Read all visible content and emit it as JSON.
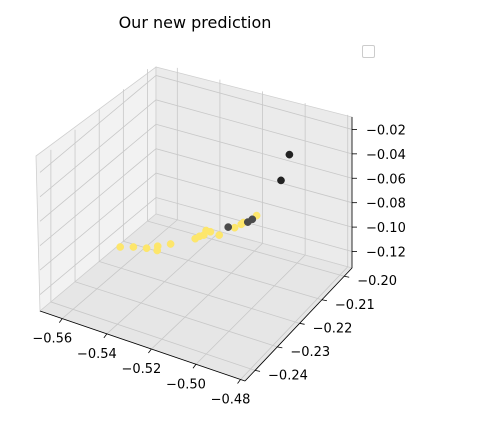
{
  "chart_data": {
    "type": "scatter3d",
    "title": "Our new prediction",
    "xlabel": "",
    "ylabel": "",
    "zlabel": "",
    "x_ticks": [
      "−0.56",
      "−0.54",
      "−0.52",
      "−0.50",
      "−0.48"
    ],
    "y_ticks": [
      "−0.24",
      "−0.23",
      "−0.22",
      "−0.21",
      "−0.20"
    ],
    "z_ticks": [
      "−0.12",
      "−0.10",
      "−0.08",
      "−0.06",
      "−0.04",
      "−0.02"
    ],
    "legend": {
      "placement": "top-right",
      "entries": []
    },
    "grid": true,
    "colors": {
      "yellow": "#fde66b",
      "dark": "#4a4a4a",
      "black": "#222222"
    },
    "series": [
      {
        "points": [
          {
            "x": -0.567,
            "y": -0.214,
            "z": -0.13,
            "color": "yellow"
          },
          {
            "x": -0.562,
            "y": -0.213,
            "z": -0.129,
            "color": "yellow"
          },
          {
            "x": -0.557,
            "y": -0.212,
            "z": -0.129,
            "color": "yellow"
          },
          {
            "x": -0.553,
            "y": -0.211,
            "z": -0.127,
            "color": "yellow"
          },
          {
            "x": -0.551,
            "y": -0.213,
            "z": -0.126,
            "color": "yellow"
          },
          {
            "x": -0.547,
            "y": -0.211,
            "z": -0.122,
            "color": "yellow"
          },
          {
            "x": -0.54,
            "y": -0.207,
            "z": -0.121,
            "color": "yellow"
          },
          {
            "x": -0.538,
            "y": -0.207,
            "z": -0.118,
            "color": "yellow"
          },
          {
            "x": -0.536,
            "y": -0.207,
            "z": -0.116,
            "color": "yellow"
          },
          {
            "x": -0.536,
            "y": -0.206,
            "z": -0.114,
            "color": "yellow"
          },
          {
            "x": -0.534,
            "y": -0.206,
            "z": -0.114,
            "color": "yellow"
          },
          {
            "x": -0.531,
            "y": -0.205,
            "z": -0.117,
            "color": "yellow"
          },
          {
            "x": -0.526,
            "y": -0.203,
            "z": -0.112,
            "color": "yellow"
          },
          {
            "x": -0.524,
            "y": -0.202,
            "z": -0.11,
            "color": "yellow"
          },
          {
            "x": -0.523,
            "y": -0.202,
            "z": -0.108,
            "color": "yellow"
          },
          {
            "x": -0.519,
            "y": -0.2,
            "z": -0.104,
            "color": "yellow"
          },
          {
            "x": -0.529,
            "y": -0.203,
            "z": -0.113,
            "color": "dark"
          },
          {
            "x": -0.522,
            "y": -0.201,
            "z": -0.109,
            "color": "dark"
          },
          {
            "x": -0.521,
            "y": -0.2,
            "z": -0.108,
            "color": "dark"
          },
          {
            "x": -0.498,
            "y": -0.209,
            "z": -0.048,
            "color": "black"
          },
          {
            "x": -0.492,
            "y": -0.211,
            "z": -0.02,
            "color": "black"
          }
        ]
      }
    ]
  }
}
